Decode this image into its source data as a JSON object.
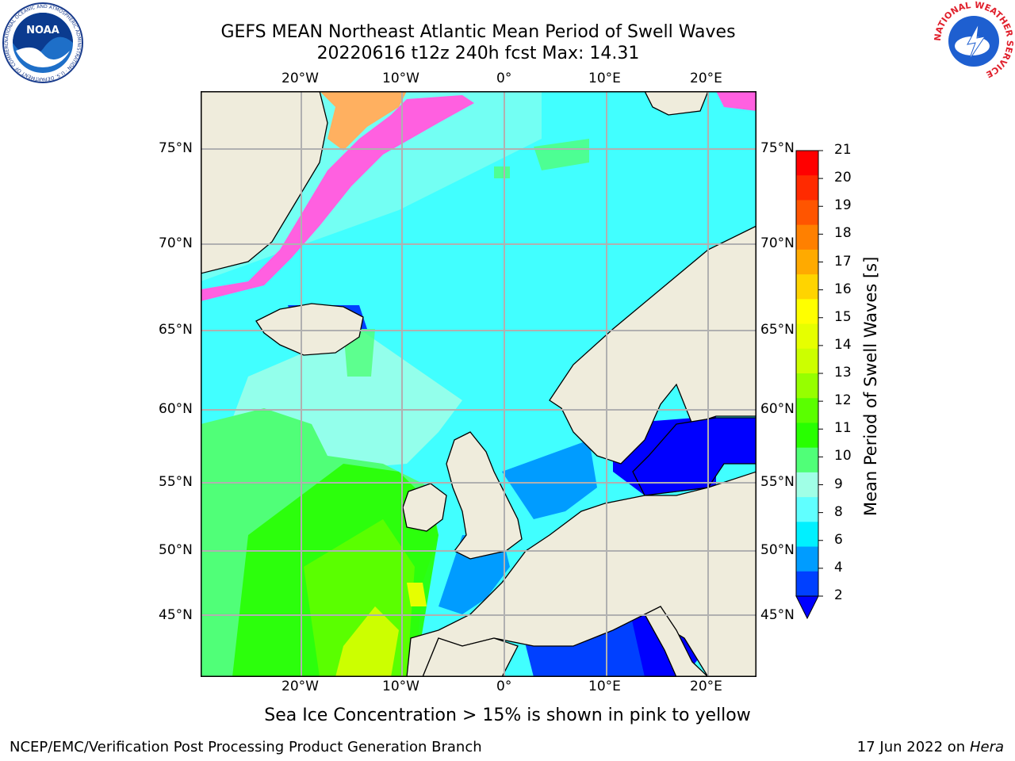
{
  "title": {
    "line1": "GEFS MEAN Northeast Atlantic Mean Period of Swell Waves",
    "line2": "20220616 t12z 240h fcst   Max: 14.31"
  },
  "map": {
    "lon_labels": [
      "20°W",
      "10°W",
      "0°",
      "10°E",
      "20°E"
    ],
    "lat_labels": [
      "75°N",
      "70°N",
      "65°N",
      "60°N",
      "55°N",
      "50°N",
      "45°N"
    ],
    "land_color": "#efecdc",
    "ocean_base_color": "#41ffff"
  },
  "colorbar": {
    "title": "Mean Period of Swell Waves [s]",
    "ticks": [
      "21",
      "20",
      "19",
      "18",
      "17",
      "16",
      "15",
      "14",
      "13",
      "12",
      "11",
      "10",
      "9",
      "8",
      "6",
      "4",
      "2"
    ],
    "colors": [
      "#ff0000",
      "#ff2a00",
      "#ff5500",
      "#ff8000",
      "#ffaa00",
      "#ffd400",
      "#ffff00",
      "#e6ff00",
      "#ccff00",
      "#96ff00",
      "#5aff00",
      "#28ff00",
      "#50ff78",
      "#a0ffe6",
      "#60ffff",
      "#00f0ff",
      "#009cff",
      "#0040ff"
    ],
    "extend_color": "#0000ff"
  },
  "caption": "Sea Ice Concentration > 15% is shown in pink to yellow",
  "footer": {
    "left": "NCEP/EMC/Verification Post Processing Product Generation Branch",
    "right_date": "17 Jun 2022 on",
    "right_host": "Hera"
  },
  "logos": {
    "noaa_text": "NOAA",
    "noaa_ring": "NATIONAL OCEANIC AND ATMOSPHERIC ADMINISTRATION · U.S. DEPARTMENT OF COMMERCE",
    "nws_ring": "NATIONAL WEATHER SERVICE"
  }
}
